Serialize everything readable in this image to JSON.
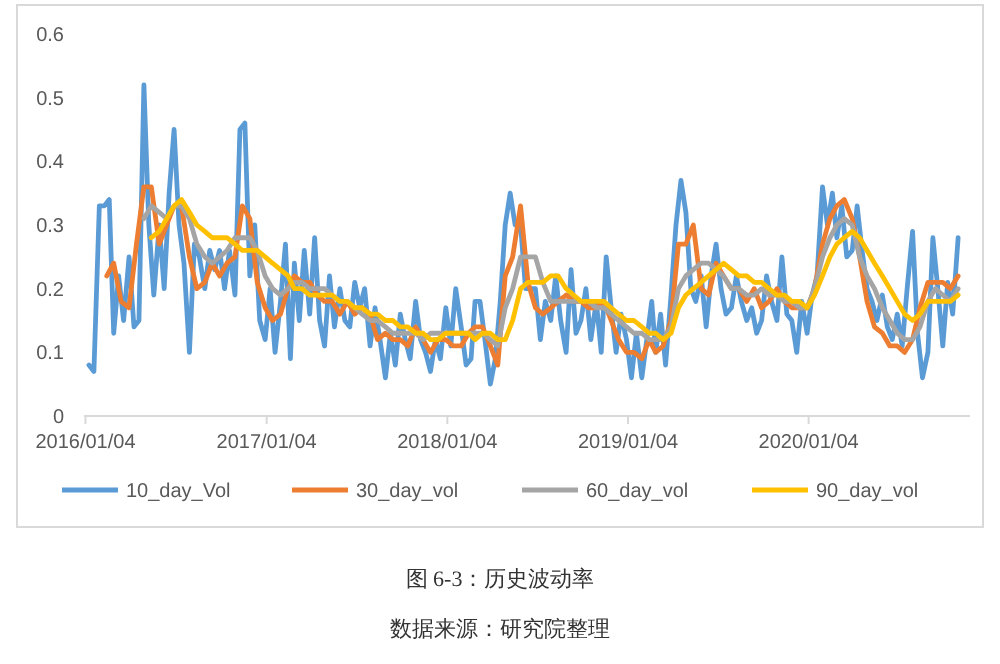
{
  "chart_data": {
    "type": "line",
    "title": "图 6-3：历史波动率",
    "annotations": [
      "数据来源：研究院整理"
    ],
    "xlim": [
      "2016-01-01",
      "2020-11-25"
    ],
    "xticks": [
      {
        "value": "2016-01-04",
        "label": "2016/01/04"
      },
      {
        "value": "2017-01-04",
        "label": "2017/01/04"
      },
      {
        "value": "2018-01-04",
        "label": "2018/01/04"
      },
      {
        "value": "2019-01-04",
        "label": "2019/01/04"
      },
      {
        "value": "2020-01-04",
        "label": "2020/01/04"
      }
    ],
    "ylim": [
      0,
      0.6
    ],
    "yticks": [
      0,
      0.1,
      0.2,
      0.3,
      0.4,
      0.5,
      0.6
    ],
    "grid": false,
    "legend": "bottom",
    "marker": "none",
    "line_style": "solid",
    "series": [
      {
        "name": "10_day_Vol",
        "color": "#5b9bd5",
        "x": [
          "2016-01-11",
          "2016-01-21",
          "2016-02-01",
          "2016-02-11",
          "2016-02-21",
          "2016-03-01",
          "2016-03-11",
          "2016-03-21",
          "2016-04-01",
          "2016-04-11",
          "2016-04-21",
          "2016-05-01",
          "2016-05-11",
          "2016-05-21",
          "2016-06-01",
          "2016-06-11",
          "2016-06-21",
          "2016-07-01",
          "2016-07-11",
          "2016-07-21",
          "2016-08-01",
          "2016-08-11",
          "2016-08-21",
          "2016-09-01",
          "2016-09-11",
          "2016-09-21",
          "2016-10-01",
          "2016-10-11",
          "2016-10-21",
          "2016-11-01",
          "2016-11-11",
          "2016-11-21",
          "2016-12-01",
          "2016-12-11",
          "2016-12-21",
          "2017-01-01",
          "2017-01-11",
          "2017-01-21",
          "2017-02-01",
          "2017-02-11",
          "2017-02-21",
          "2017-03-01",
          "2017-03-11",
          "2017-03-21",
          "2017-04-01",
          "2017-04-11",
          "2017-04-21",
          "2017-05-01",
          "2017-05-11",
          "2017-05-21",
          "2017-06-01",
          "2017-06-11",
          "2017-06-21",
          "2017-07-01",
          "2017-07-11",
          "2017-07-21",
          "2017-08-01",
          "2017-08-11",
          "2017-08-21",
          "2017-09-01",
          "2017-09-11",
          "2017-09-21",
          "2017-10-01",
          "2017-10-11",
          "2017-10-21",
          "2017-11-01",
          "2017-11-11",
          "2017-11-21",
          "2017-12-01",
          "2017-12-11",
          "2017-12-21",
          "2018-01-01",
          "2018-01-11",
          "2018-01-21",
          "2018-02-01",
          "2018-02-11",
          "2018-02-21",
          "2018-03-01",
          "2018-03-11",
          "2018-03-21",
          "2018-04-01",
          "2018-04-11",
          "2018-04-21",
          "2018-05-01",
          "2018-05-11",
          "2018-05-21",
          "2018-06-01",
          "2018-06-11",
          "2018-06-21",
          "2018-07-01",
          "2018-07-11",
          "2018-07-21",
          "2018-08-01",
          "2018-08-11",
          "2018-08-21",
          "2018-09-01",
          "2018-09-11",
          "2018-09-21",
          "2018-10-01",
          "2018-10-11",
          "2018-10-21",
          "2018-11-01",
          "2018-11-11",
          "2018-11-21",
          "2018-12-01",
          "2018-12-11",
          "2018-12-21",
          "2019-01-01",
          "2019-01-11",
          "2019-01-21",
          "2019-02-01",
          "2019-02-11",
          "2019-02-21",
          "2019-03-01",
          "2019-03-11",
          "2019-03-21",
          "2019-04-01",
          "2019-04-11",
          "2019-04-21",
          "2019-05-01",
          "2019-05-11",
          "2019-05-21",
          "2019-06-01",
          "2019-06-11",
          "2019-06-21",
          "2019-07-01",
          "2019-07-11",
          "2019-07-21",
          "2019-08-01",
          "2019-08-11",
          "2019-08-21",
          "2019-09-01",
          "2019-09-11",
          "2019-09-21",
          "2019-10-01",
          "2019-10-11",
          "2019-10-21",
          "2019-11-01",
          "2019-11-11",
          "2019-11-21",
          "2019-12-01",
          "2019-12-11",
          "2019-12-21",
          "2020-01-01",
          "2020-01-11",
          "2020-01-21",
          "2020-02-01",
          "2020-02-11",
          "2020-02-21",
          "2020-03-01",
          "2020-03-11",
          "2020-03-21",
          "2020-04-01",
          "2020-04-11",
          "2020-04-21",
          "2020-05-01",
          "2020-05-11",
          "2020-05-21",
          "2020-06-01",
          "2020-06-11",
          "2020-06-21",
          "2020-07-01",
          "2020-07-11",
          "2020-07-21",
          "2020-08-01",
          "2020-08-11",
          "2020-08-21",
          "2020-09-01",
          "2020-09-11",
          "2020-09-21",
          "2020-10-01",
          "2020-10-11",
          "2020-10-21",
          "2020-11-01"
        ],
        "values": [
          0.08,
          0.07,
          0.33,
          0.33,
          0.34,
          0.13,
          0.22,
          0.15,
          0.25,
          0.14,
          0.15,
          0.52,
          0.3,
          0.19,
          0.3,
          0.2,
          0.35,
          0.45,
          0.3,
          0.24,
          0.1,
          0.27,
          0.25,
          0.2,
          0.26,
          0.23,
          0.26,
          0.2,
          0.26,
          0.19,
          0.45,
          0.46,
          0.22,
          0.3,
          0.15,
          0.12,
          0.2,
          0.1,
          0.18,
          0.27,
          0.09,
          0.24,
          0.15,
          0.26,
          0.16,
          0.28,
          0.15,
          0.11,
          0.22,
          0.14,
          0.2,
          0.15,
          0.14,
          0.21,
          0.17,
          0.2,
          0.11,
          0.17,
          0.12,
          0.06,
          0.13,
          0.08,
          0.16,
          0.12,
          0.09,
          0.18,
          0.12,
          0.1,
          0.07,
          0.12,
          0.09,
          0.17,
          0.11,
          0.2,
          0.14,
          0.08,
          0.09,
          0.18,
          0.18,
          0.12,
          0.05,
          0.09,
          0.18,
          0.3,
          0.35,
          0.3,
          0.3,
          0.2,
          0.2,
          0.2,
          0.12,
          0.18,
          0.15,
          0.22,
          0.15,
          0.1,
          0.23,
          0.13,
          0.15,
          0.2,
          0.12,
          0.18,
          0.1,
          0.25,
          0.17,
          0.1,
          0.16,
          0.12,
          0.06,
          0.13,
          0.06,
          0.12,
          0.18,
          0.1,
          0.16,
          0.08,
          0.19,
          0.3,
          0.37,
          0.32,
          0.2,
          0.18,
          0.22,
          0.14,
          0.22,
          0.27,
          0.2,
          0.16,
          0.17,
          0.22,
          0.18,
          0.15,
          0.17,
          0.13,
          0.15,
          0.22,
          0.18,
          0.15,
          0.25,
          0.16,
          0.15,
          0.1,
          0.18,
          0.13,
          0.19,
          0.22,
          0.36,
          0.3,
          0.35,
          0.28,
          0.33,
          0.25,
          0.26,
          0.33,
          0.26,
          0.2,
          0.18,
          0.15,
          0.19,
          0.14,
          0.12,
          0.16,
          0.11,
          0.2,
          0.29,
          0.13,
          0.06,
          0.1,
          0.28,
          0.2,
          0.11,
          0.21,
          0.16,
          0.28
        ]
      },
      {
        "name": "30_day_vol",
        "color": "#ed7d31",
        "x": [
          "2016-02-16",
          "2016-03-01",
          "2016-03-16",
          "2016-04-01",
          "2016-04-16",
          "2016-05-01",
          "2016-05-16",
          "2016-06-01",
          "2016-06-16",
          "2016-07-01",
          "2016-07-16",
          "2016-08-01",
          "2016-08-16",
          "2016-09-01",
          "2016-09-16",
          "2016-10-01",
          "2016-10-16",
          "2016-11-01",
          "2016-11-16",
          "2016-12-01",
          "2016-12-16",
          "2017-01-01",
          "2017-01-16",
          "2017-02-01",
          "2017-02-16",
          "2017-03-01",
          "2017-03-16",
          "2017-04-01",
          "2017-04-16",
          "2017-05-01",
          "2017-05-16",
          "2017-06-01",
          "2017-06-16",
          "2017-07-01",
          "2017-07-16",
          "2017-08-01",
          "2017-08-16",
          "2017-09-01",
          "2017-09-16",
          "2017-10-01",
          "2017-10-16",
          "2017-11-01",
          "2017-11-16",
          "2017-12-01",
          "2017-12-16",
          "2018-01-01",
          "2018-01-16",
          "2018-02-01",
          "2018-02-16",
          "2018-03-01",
          "2018-03-16",
          "2018-04-01",
          "2018-04-16",
          "2018-05-01",
          "2018-05-16",
          "2018-06-01",
          "2018-06-16",
          "2018-07-01",
          "2018-07-16",
          "2018-08-01",
          "2018-08-16",
          "2018-09-01",
          "2018-09-16",
          "2018-10-01",
          "2018-10-16",
          "2018-11-01",
          "2018-11-16",
          "2018-12-01",
          "2018-12-16",
          "2019-01-01",
          "2019-01-16",
          "2019-02-01",
          "2019-02-16",
          "2019-03-01",
          "2019-03-16",
          "2019-04-01",
          "2019-04-16",
          "2019-05-01",
          "2019-05-16",
          "2019-06-01",
          "2019-06-16",
          "2019-07-01",
          "2019-07-16",
          "2019-08-01",
          "2019-08-16",
          "2019-09-01",
          "2019-09-16",
          "2019-10-01",
          "2019-10-16",
          "2019-11-01",
          "2019-11-16",
          "2019-12-01",
          "2019-12-16",
          "2020-01-01",
          "2020-01-16",
          "2020-02-01",
          "2020-02-16",
          "2020-03-01",
          "2020-03-16",
          "2020-04-01",
          "2020-04-16",
          "2020-05-01",
          "2020-05-16",
          "2020-06-01",
          "2020-06-16",
          "2020-07-01",
          "2020-07-16",
          "2020-08-01",
          "2020-08-16",
          "2020-09-01",
          "2020-09-16",
          "2020-10-01",
          "2020-10-16",
          "2020-11-01"
        ],
        "values": [
          0.22,
          0.24,
          0.18,
          0.17,
          0.27,
          0.36,
          0.36,
          0.27,
          0.3,
          0.33,
          0.33,
          0.25,
          0.2,
          0.21,
          0.24,
          0.22,
          0.24,
          0.25,
          0.33,
          0.31,
          0.21,
          0.17,
          0.15,
          0.16,
          0.2,
          0.22,
          0.21,
          0.21,
          0.19,
          0.18,
          0.18,
          0.16,
          0.18,
          0.16,
          0.17,
          0.16,
          0.12,
          0.13,
          0.12,
          0.12,
          0.11,
          0.14,
          0.12,
          0.1,
          0.12,
          0.12,
          0.11,
          0.11,
          0.13,
          0.14,
          0.14,
          0.11,
          0.08,
          0.22,
          0.25,
          0.33,
          0.21,
          0.17,
          0.16,
          0.17,
          0.18,
          0.19,
          0.18,
          0.18,
          0.17,
          0.17,
          0.18,
          0.15,
          0.12,
          0.1,
          0.1,
          0.09,
          0.12,
          0.1,
          0.11,
          0.15,
          0.27,
          0.27,
          0.3,
          0.2,
          0.19,
          0.24,
          0.22,
          0.2,
          0.2,
          0.18,
          0.2,
          0.17,
          0.18,
          0.2,
          0.18,
          0.17,
          0.17,
          0.17,
          0.2,
          0.27,
          0.31,
          0.33,
          0.34,
          0.31,
          0.25,
          0.18,
          0.14,
          0.13,
          0.11,
          0.11,
          0.1,
          0.12,
          0.17,
          0.21,
          0.21,
          0.21,
          0.2,
          0.22
        ]
      },
      {
        "name": "60_day_vol",
        "color": "#a5a5a5",
        "x": [
          "2016-05-01",
          "2016-05-16",
          "2016-06-01",
          "2016-06-16",
          "2016-07-01",
          "2016-07-16",
          "2016-08-01",
          "2016-08-16",
          "2016-09-01",
          "2016-09-16",
          "2016-10-01",
          "2016-10-16",
          "2016-11-01",
          "2016-11-16",
          "2016-12-01",
          "2016-12-16",
          "2017-01-01",
          "2017-01-16",
          "2017-02-01",
          "2017-02-16",
          "2017-03-01",
          "2017-03-16",
          "2017-04-01",
          "2017-04-16",
          "2017-05-01",
          "2017-05-16",
          "2017-06-01",
          "2017-06-16",
          "2017-07-01",
          "2017-07-16",
          "2017-08-01",
          "2017-08-16",
          "2017-09-01",
          "2017-09-16",
          "2017-10-01",
          "2017-10-16",
          "2017-11-01",
          "2017-11-16",
          "2017-12-01",
          "2017-12-16",
          "2018-01-01",
          "2018-01-16",
          "2018-02-01",
          "2018-02-16",
          "2018-03-01",
          "2018-03-16",
          "2018-04-01",
          "2018-04-16",
          "2018-05-01",
          "2018-05-16",
          "2018-06-01",
          "2018-06-16",
          "2018-07-01",
          "2018-07-16",
          "2018-08-01",
          "2018-08-16",
          "2018-09-01",
          "2018-09-16",
          "2018-10-01",
          "2018-10-16",
          "2018-11-01",
          "2018-11-16",
          "2018-12-01",
          "2018-12-16",
          "2019-01-01",
          "2019-01-16",
          "2019-02-01",
          "2019-02-16",
          "2019-03-01",
          "2019-03-16",
          "2019-04-01",
          "2019-04-16",
          "2019-05-01",
          "2019-05-16",
          "2019-06-01",
          "2019-06-16",
          "2019-07-01",
          "2019-07-16",
          "2019-08-01",
          "2019-08-16",
          "2019-09-01",
          "2019-09-16",
          "2019-10-01",
          "2019-10-16",
          "2019-11-01",
          "2019-11-16",
          "2019-12-01",
          "2019-12-16",
          "2020-01-01",
          "2020-01-16",
          "2020-02-01",
          "2020-02-16",
          "2020-03-01",
          "2020-03-16",
          "2020-04-01",
          "2020-04-16",
          "2020-05-01",
          "2020-05-16",
          "2020-06-01",
          "2020-06-16",
          "2020-07-01",
          "2020-07-16",
          "2020-08-01",
          "2020-08-16",
          "2020-09-01",
          "2020-09-16",
          "2020-10-01",
          "2020-10-16",
          "2020-11-01"
        ],
        "values": [
          0.31,
          0.33,
          0.32,
          0.31,
          0.33,
          0.33,
          0.31,
          0.27,
          0.25,
          0.24,
          0.25,
          0.26,
          0.28,
          0.28,
          0.28,
          0.26,
          0.22,
          0.2,
          0.19,
          0.2,
          0.21,
          0.21,
          0.2,
          0.2,
          0.2,
          0.19,
          0.18,
          0.18,
          0.17,
          0.16,
          0.15,
          0.15,
          0.14,
          0.13,
          0.13,
          0.13,
          0.13,
          0.12,
          0.13,
          0.13,
          0.13,
          0.13,
          0.13,
          0.13,
          0.13,
          0.13,
          0.12,
          0.11,
          0.17,
          0.2,
          0.25,
          0.25,
          0.25,
          0.21,
          0.18,
          0.18,
          0.18,
          0.18,
          0.18,
          0.18,
          0.17,
          0.17,
          0.16,
          0.15,
          0.14,
          0.13,
          0.13,
          0.12,
          0.12,
          0.12,
          0.14,
          0.2,
          0.22,
          0.23,
          0.24,
          0.24,
          0.23,
          0.22,
          0.2,
          0.2,
          0.19,
          0.19,
          0.2,
          0.19,
          0.19,
          0.18,
          0.18,
          0.17,
          0.17,
          0.2,
          0.25,
          0.28,
          0.3,
          0.31,
          0.3,
          0.25,
          0.22,
          0.2,
          0.17,
          0.15,
          0.13,
          0.12,
          0.12,
          0.14,
          0.18,
          0.2,
          0.19,
          0.18,
          0.2
        ]
      },
      {
        "name": "90_day_vol",
        "color": "#ffc000",
        "x": [
          "2016-05-16",
          "2016-06-01",
          "2016-06-16",
          "2016-07-01",
          "2016-07-16",
          "2016-08-01",
          "2016-08-16",
          "2016-09-01",
          "2016-09-16",
          "2016-10-01",
          "2016-10-16",
          "2016-11-01",
          "2016-11-16",
          "2016-12-01",
          "2016-12-16",
          "2017-01-01",
          "2017-01-16",
          "2017-02-01",
          "2017-02-16",
          "2017-03-01",
          "2017-03-16",
          "2017-04-01",
          "2017-04-16",
          "2017-05-01",
          "2017-05-16",
          "2017-06-01",
          "2017-06-16",
          "2017-07-01",
          "2017-07-16",
          "2017-08-01",
          "2017-08-16",
          "2017-09-01",
          "2017-09-16",
          "2017-10-01",
          "2017-10-16",
          "2017-11-01",
          "2017-11-16",
          "2017-12-01",
          "2017-12-16",
          "2018-01-01",
          "2018-01-16",
          "2018-02-01",
          "2018-02-16",
          "2018-03-01",
          "2018-03-16",
          "2018-04-01",
          "2018-04-16",
          "2018-05-01",
          "2018-05-16",
          "2018-06-01",
          "2018-06-16",
          "2018-07-01",
          "2018-07-16",
          "2018-08-01",
          "2018-08-16",
          "2018-09-01",
          "2018-09-16",
          "2018-10-01",
          "2018-10-16",
          "2018-11-01",
          "2018-11-16",
          "2018-12-01",
          "2018-12-16",
          "2019-01-01",
          "2019-01-16",
          "2019-02-01",
          "2019-02-16",
          "2019-03-01",
          "2019-03-16",
          "2019-04-01",
          "2019-04-16",
          "2019-05-01",
          "2019-05-16",
          "2019-06-01",
          "2019-06-16",
          "2019-07-01",
          "2019-07-16",
          "2019-08-01",
          "2019-08-16",
          "2019-09-01",
          "2019-09-16",
          "2019-10-01",
          "2019-10-16",
          "2019-11-01",
          "2019-11-16",
          "2019-12-01",
          "2019-12-16",
          "2020-01-01",
          "2020-01-16",
          "2020-02-01",
          "2020-02-16",
          "2020-03-01",
          "2020-03-16",
          "2020-04-01",
          "2020-04-16",
          "2020-05-01",
          "2020-05-16",
          "2020-06-01",
          "2020-06-16",
          "2020-07-01",
          "2020-07-16",
          "2020-08-01",
          "2020-08-16",
          "2020-09-01",
          "2020-09-16",
          "2020-10-01",
          "2020-10-16",
          "2020-11-01"
        ],
        "values": [
          0.28,
          0.29,
          0.31,
          0.33,
          0.34,
          0.32,
          0.3,
          0.29,
          0.28,
          0.28,
          0.28,
          0.27,
          0.26,
          0.26,
          0.26,
          0.25,
          0.24,
          0.23,
          0.22,
          0.2,
          0.2,
          0.19,
          0.19,
          0.19,
          0.19,
          0.18,
          0.18,
          0.17,
          0.17,
          0.16,
          0.16,
          0.15,
          0.15,
          0.14,
          0.14,
          0.13,
          0.13,
          0.12,
          0.12,
          0.13,
          0.13,
          0.13,
          0.13,
          0.12,
          0.13,
          0.13,
          0.12,
          0.12,
          0.15,
          0.2,
          0.21,
          0.21,
          0.21,
          0.22,
          0.22,
          0.2,
          0.19,
          0.18,
          0.18,
          0.18,
          0.18,
          0.17,
          0.16,
          0.15,
          0.15,
          0.14,
          0.13,
          0.13,
          0.12,
          0.13,
          0.17,
          0.19,
          0.2,
          0.21,
          0.22,
          0.23,
          0.24,
          0.23,
          0.22,
          0.22,
          0.21,
          0.21,
          0.2,
          0.19,
          0.19,
          0.18,
          0.18,
          0.17,
          0.19,
          0.22,
          0.25,
          0.27,
          0.28,
          0.29,
          0.28,
          0.26,
          0.24,
          0.22,
          0.2,
          0.18,
          0.16,
          0.15,
          0.16,
          0.18,
          0.18,
          0.18,
          0.18,
          0.19
        ]
      }
    ]
  }
}
